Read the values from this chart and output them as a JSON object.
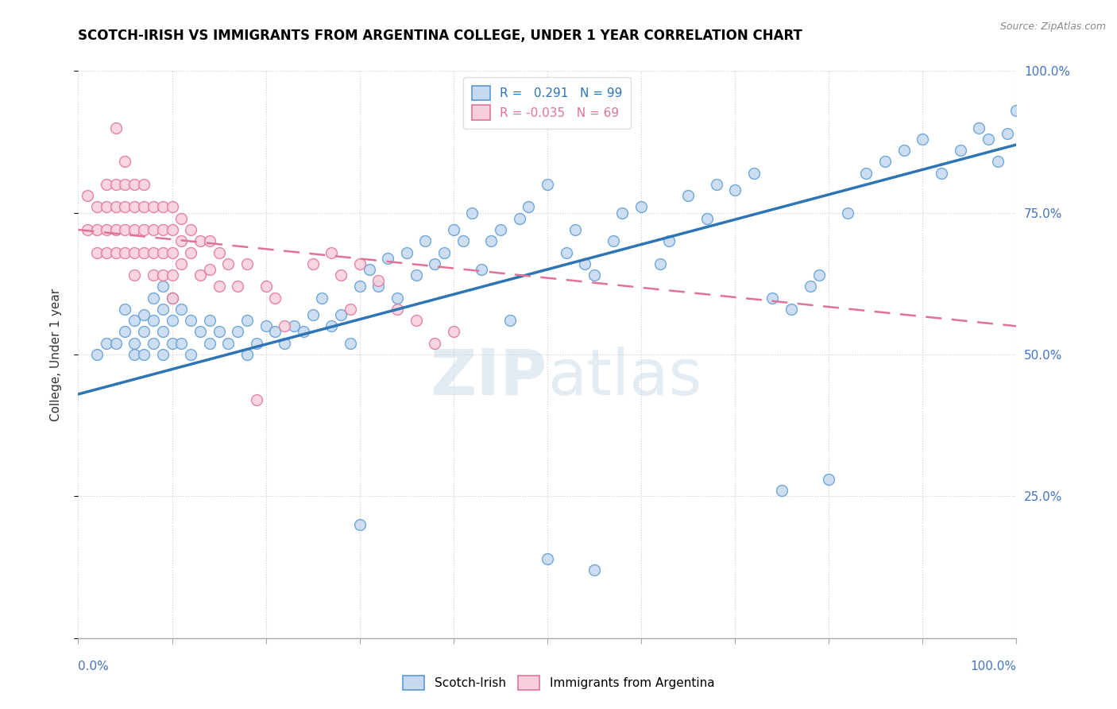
{
  "title": "SCOTCH-IRISH VS IMMIGRANTS FROM ARGENTINA COLLEGE, UNDER 1 YEAR CORRELATION CHART",
  "source": "Source: ZipAtlas.com",
  "ylabel": "College, Under 1 year",
  "xlim": [
    0.0,
    1.0
  ],
  "ylim": [
    0.0,
    1.0
  ],
  "blue_R": 0.291,
  "blue_N": 99,
  "pink_R": -0.035,
  "pink_N": 69,
  "blue_color": "#c5d9f0",
  "blue_edge_color": "#5b9bd5",
  "blue_line_color": "#2e75b6",
  "pink_color": "#f8cedc",
  "pink_edge_color": "#e0729a",
  "pink_line_color": "#e0729a",
  "watermark_color": "#d0dce8",
  "blue_trend_x0": 0.0,
  "blue_trend_y0": 0.43,
  "blue_trend_x1": 1.0,
  "blue_trend_y1": 0.87,
  "pink_trend_x0": 0.0,
  "pink_trend_y0": 0.72,
  "pink_trend_x1": 1.0,
  "pink_trend_y1": 0.55,
  "blue_scatter_x": [
    0.02,
    0.03,
    0.04,
    0.05,
    0.05,
    0.06,
    0.06,
    0.06,
    0.07,
    0.07,
    0.07,
    0.08,
    0.08,
    0.08,
    0.09,
    0.09,
    0.09,
    0.09,
    0.1,
    0.1,
    0.1,
    0.11,
    0.11,
    0.12,
    0.12,
    0.13,
    0.14,
    0.14,
    0.15,
    0.16,
    0.17,
    0.18,
    0.18,
    0.19,
    0.2,
    0.21,
    0.22,
    0.23,
    0.24,
    0.25,
    0.26,
    0.27,
    0.28,
    0.29,
    0.3,
    0.31,
    0.32,
    0.33,
    0.34,
    0.35,
    0.36,
    0.37,
    0.38,
    0.39,
    0.4,
    0.41,
    0.42,
    0.43,
    0.44,
    0.45,
    0.46,
    0.47,
    0.48,
    0.5,
    0.52,
    0.53,
    0.54,
    0.55,
    0.57,
    0.58,
    0.6,
    0.62,
    0.63,
    0.65,
    0.67,
    0.68,
    0.7,
    0.72,
    0.74,
    0.76,
    0.78,
    0.8,
    0.82,
    0.84,
    0.86,
    0.88,
    0.9,
    0.92,
    0.94,
    0.96,
    0.97,
    0.98,
    0.99,
    1.0,
    0.75,
    0.79,
    0.5,
    0.55,
    0.3
  ],
  "blue_scatter_y": [
    0.5,
    0.52,
    0.52,
    0.58,
    0.54,
    0.56,
    0.52,
    0.5,
    0.57,
    0.54,
    0.5,
    0.6,
    0.56,
    0.52,
    0.62,
    0.58,
    0.54,
    0.5,
    0.6,
    0.56,
    0.52,
    0.58,
    0.52,
    0.56,
    0.5,
    0.54,
    0.56,
    0.52,
    0.54,
    0.52,
    0.54,
    0.56,
    0.5,
    0.52,
    0.55,
    0.54,
    0.52,
    0.55,
    0.54,
    0.57,
    0.6,
    0.55,
    0.57,
    0.52,
    0.62,
    0.65,
    0.62,
    0.67,
    0.6,
    0.68,
    0.64,
    0.7,
    0.66,
    0.68,
    0.72,
    0.7,
    0.75,
    0.65,
    0.7,
    0.72,
    0.56,
    0.74,
    0.76,
    0.8,
    0.68,
    0.72,
    0.66,
    0.64,
    0.7,
    0.75,
    0.76,
    0.66,
    0.7,
    0.78,
    0.74,
    0.8,
    0.79,
    0.82,
    0.6,
    0.58,
    0.62,
    0.28,
    0.75,
    0.82,
    0.84,
    0.86,
    0.88,
    0.82,
    0.86,
    0.9,
    0.88,
    0.84,
    0.89,
    0.93,
    0.26,
    0.64,
    0.14,
    0.12,
    0.2
  ],
  "pink_scatter_x": [
    0.01,
    0.01,
    0.02,
    0.02,
    0.02,
    0.03,
    0.03,
    0.03,
    0.03,
    0.04,
    0.04,
    0.04,
    0.04,
    0.05,
    0.05,
    0.05,
    0.05,
    0.05,
    0.06,
    0.06,
    0.06,
    0.06,
    0.06,
    0.07,
    0.07,
    0.07,
    0.07,
    0.08,
    0.08,
    0.08,
    0.08,
    0.09,
    0.09,
    0.09,
    0.09,
    0.1,
    0.1,
    0.1,
    0.1,
    0.1,
    0.11,
    0.11,
    0.11,
    0.12,
    0.12,
    0.13,
    0.13,
    0.14,
    0.14,
    0.15,
    0.15,
    0.16,
    0.17,
    0.18,
    0.19,
    0.2,
    0.21,
    0.22,
    0.25,
    0.27,
    0.28,
    0.29,
    0.3,
    0.32,
    0.34,
    0.36,
    0.38,
    0.4,
    0.04
  ],
  "pink_scatter_y": [
    0.78,
    0.72,
    0.76,
    0.72,
    0.68,
    0.8,
    0.76,
    0.72,
    0.68,
    0.8,
    0.76,
    0.72,
    0.68,
    0.84,
    0.8,
    0.76,
    0.72,
    0.68,
    0.8,
    0.76,
    0.72,
    0.68,
    0.64,
    0.8,
    0.76,
    0.72,
    0.68,
    0.76,
    0.72,
    0.68,
    0.64,
    0.76,
    0.72,
    0.68,
    0.64,
    0.76,
    0.72,
    0.68,
    0.64,
    0.6,
    0.74,
    0.7,
    0.66,
    0.72,
    0.68,
    0.7,
    0.64,
    0.7,
    0.65,
    0.68,
    0.62,
    0.66,
    0.62,
    0.66,
    0.42,
    0.62,
    0.6,
    0.55,
    0.66,
    0.68,
    0.64,
    0.58,
    0.66,
    0.63,
    0.58,
    0.56,
    0.52,
    0.54,
    0.9
  ]
}
